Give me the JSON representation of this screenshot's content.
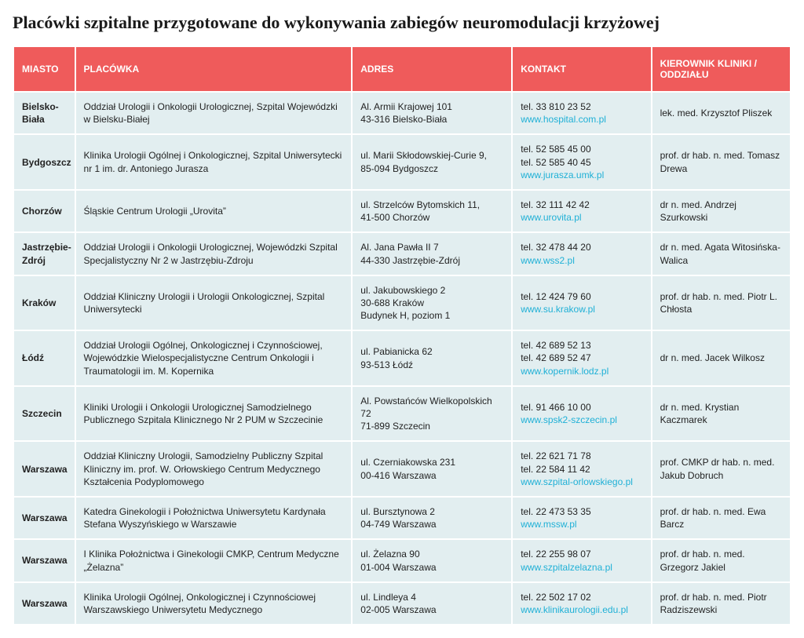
{
  "title": "Placówki szpitalne przygotowane do wykonywania zabiegów neuromodulacji krzyżowej",
  "header_bg": "#ef5b5b",
  "header_fg": "#ffffff",
  "cell_bg": "#e2eef0",
  "link_color": "#1fb0d6",
  "columns": {
    "city": "MIASTO",
    "facility": "PLACÓWKA",
    "address": "ADRES",
    "contact": "KONTAKT",
    "head": "KIEROWNIK KLINIKI / ODDZIAŁU"
  },
  "rows": [
    {
      "city": "Bielsko-Biała",
      "facility": "Oddział Urologii i Onkologii Urologicznej, Szpital Wojewódzki w Bielsku-Białej",
      "address": "Al. Armii Krajowej 101\n43-316 Bielsko-Biała",
      "phones": [
        "tel. 33 810 23 52"
      ],
      "link": "www.hospital.com.pl",
      "head": "lek. med. Krzysztof Pliszek"
    },
    {
      "city": "Bydgoszcz",
      "facility": "Klinika Urologii Ogólnej i Onkologicznej, Szpital Uniwersytecki nr 1 im. dr. Antoniego Jurasza",
      "address": "ul. Marii Skłodowskiej-Curie 9,\n85-094 Bydgoszcz",
      "phones": [
        "tel. 52 585 45 00",
        "tel. 52 585 40 45"
      ],
      "link": "www.jurasza.umk.pl",
      "head": "prof. dr hab. n. med. Tomasz Drewa"
    },
    {
      "city": "Chorzów",
      "facility": "Śląskie Centrum Urologii „Urovita”",
      "address": "ul. Strzelców Bytomskich 11,\n41-500 Chorzów",
      "phones": [
        "tel. 32 111 42 42"
      ],
      "link": "www.urovita.pl",
      "head": "dr n. med. Andrzej Szurkowski"
    },
    {
      "city": "Jastrzębie-Zdrój",
      "facility": "Oddział Urologii i Onkologii Urologicznej, Wojewódzki Szpital Specjalistyczny Nr 2 w Jastrzębiu-Zdroju",
      "address": "Al. Jana Pawła II 7\n44-330 Jastrzębie-Zdrój",
      "phones": [
        "tel. 32 478 44 20"
      ],
      "link": "www.wss2.pl",
      "head": "dr n. med. Agata Witosińska-Walica"
    },
    {
      "city": "Kraków",
      "facility": "Oddział Kliniczny Urologii i Urologii Onkologicznej, Szpital Uniwersytecki",
      "address": "ul. Jakubowskiego 2\n30-688 Kraków\nBudynek H, poziom 1",
      "phones": [
        "tel. 12 424 79 60"
      ],
      "link": "www.su.krakow.pl",
      "head": "prof. dr hab. n. med. Piotr L. Chłosta"
    },
    {
      "city": "Łódź",
      "facility": "Oddział Urologii Ogólnej, Onkologicznej i Czynnościowej, Wojewódzkie Wielospecjalistyczne Centrum Onkologii i Traumatologii im. M. Kopernika",
      "address": "ul. Pabianicka 62\n93-513 Łódź",
      "phones": [
        "tel. 42 689 52 13",
        "tel. 42 689 52 47"
      ],
      "link": "www.kopernik.lodz.pl",
      "head": "dr n. med. Jacek Wilkosz"
    },
    {
      "city": "Szczecin",
      "facility": "Kliniki Urologii i Onkologii Urologicznej Samodzielnego Publicznego Szpitala Klinicznego Nr 2 PUM w Szczecinie",
      "address": "Al. Powstańców Wielkopolskich 72\n71-899 Szczecin",
      "phones": [
        "tel. 91 466 10 00"
      ],
      "link": "www.spsk2-szczecin.pl",
      "head": "dr n. med. Krystian Kaczmarek"
    },
    {
      "city": "Warszawa",
      "facility": "Oddział Kliniczny Urologii, Samodzielny Publiczny Szpital Kliniczny im. prof. W. Orłowskiego Centrum Medycznego Kształcenia Podyplomowego",
      "address": "ul. Czerniakowska 231\n00-416 Warszawa",
      "phones": [
        "tel. 22 621 71 78",
        "tel. 22 584 11 42"
      ],
      "link": "www.szpital-orlowskiego.pl",
      "head": "prof. CMKP dr hab. n. med. Jakub Dobruch"
    },
    {
      "city": "Warszawa",
      "facility": "Katedra Ginekologii i Położnictwa Uniwersytetu Kardynała Stefana Wyszyńskiego w Warszawie",
      "address": "ul. Bursztynowa 2\n04-749 Warszawa",
      "phones": [
        "tel. 22 473 53 35"
      ],
      "link": "www.mssw.pl",
      "head": "prof. dr hab. n. med. Ewa Barcz"
    },
    {
      "city": "Warszawa",
      "facility": "I Klinika Położnictwa i Ginekologii CMKP, Centrum Medyczne „Żelazna”",
      "address": "ul. Żelazna 90\n01-004 Warszawa",
      "phones": [
        "tel. 22 255 98 07"
      ],
      "link": "www.szpitalzelazna.pl",
      "head": "prof. dr hab. n. med. Grzegorz Jakiel"
    },
    {
      "city": "Warszawa",
      "facility": "Klinika Urologii Ogólnej, Onkologicznej i Czynnościowej Warszawskiego Uniwersytetu Medycznego",
      "address": "ul. Lindleya 4\n02-005 Warszawa",
      "phones": [
        "tel. 22 502 17 02"
      ],
      "link": "www.klinikaurologii.edu.pl",
      "head": "prof. dr hab. n. med. Piotr Radziszewski"
    }
  ]
}
